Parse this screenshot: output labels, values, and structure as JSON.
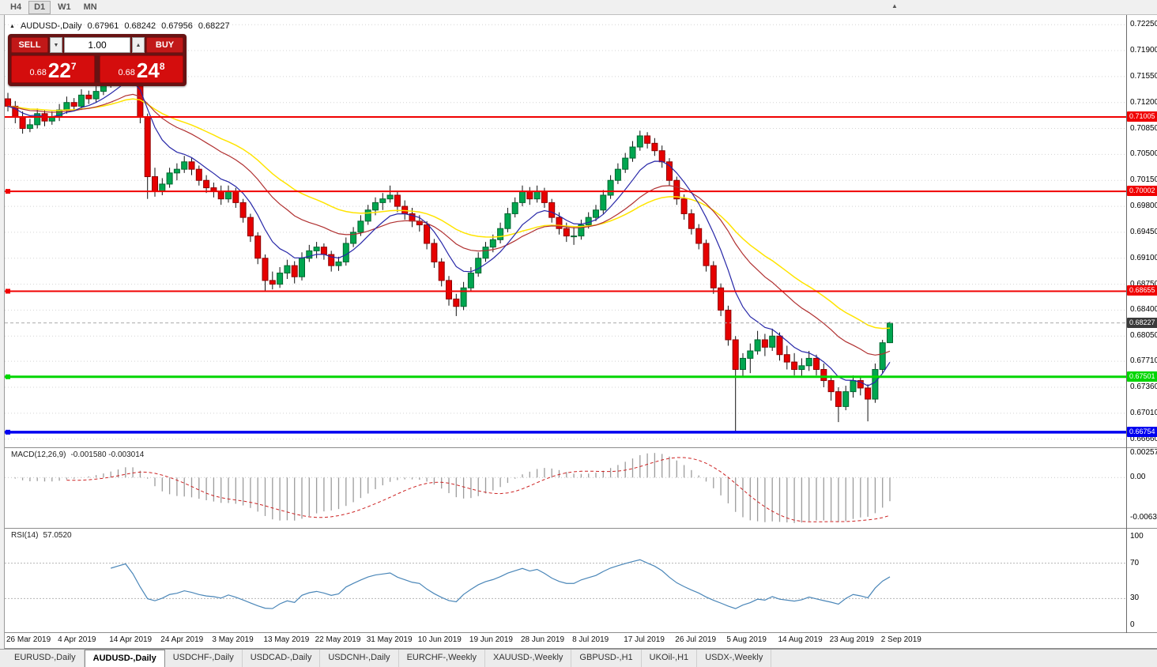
{
  "icons": {
    "up_arrow": "▲",
    "down_arrow": "▼"
  },
  "toolbar": {
    "timeframes": [
      "H4",
      "D1",
      "W1",
      "MN"
    ],
    "active": "D1"
  },
  "trade_panel": {
    "sell_label": "SELL",
    "buy_label": "BUY",
    "volume": "1.00",
    "sell_price": {
      "prefix": "0.68",
      "big": "22",
      "sup": "7"
    },
    "buy_price": {
      "prefix": "0.68",
      "big": "24",
      "sup": "8"
    }
  },
  "chart": {
    "symbol_label": "AUDUSD-,Daily",
    "ohlc": {
      "open": "0.67961",
      "high": "0.68242",
      "low": "0.67956",
      "close": "0.68227"
    },
    "price_axis": [
      "0.72250",
      "0.71900",
      "0.71550",
      "0.71200",
      "0.70850",
      "0.70500",
      "0.70150",
      "0.69800",
      "0.69450",
      "0.69100",
      "0.68750",
      "0.68400",
      "0.68050",
      "0.67710",
      "0.67360",
      "0.67010",
      "0.66660"
    ],
    "price_range": {
      "max": 0.7238,
      "min": 0.6655
    },
    "colors": {
      "bull": "#00a650",
      "bull_border": "#00662f",
      "bear": "#e60000",
      "bear_border": "#8f0000",
      "wick": "#111111"
    },
    "moving_averages": [
      {
        "period": 34,
        "color": "#ffe400",
        "width": 1.5
      },
      {
        "period": 21,
        "color": "#b03030",
        "width": 1.2
      },
      {
        "period": 8,
        "color": "#2727a8",
        "width": 1.2
      }
    ],
    "levels": [
      {
        "value": 0.71005,
        "label": "0.71005",
        "color": "#f00000",
        "width": 2,
        "anchor": false
      },
      {
        "value": 0.70002,
        "label": "0.70002",
        "color": "#f00000",
        "width": 2,
        "anchor": true
      },
      {
        "value": 0.68655,
        "label": "0.68655",
        "color": "#f00000",
        "width": 2,
        "anchor": true
      },
      {
        "value": 0.67501,
        "label": "0.67501",
        "color": "#00d600",
        "width": 3,
        "anchor": true
      },
      {
        "value": 0.66754,
        "label": "0.66754",
        "color": "#0000f0",
        "width": 3.5,
        "anchor": true
      }
    ],
    "current_price": {
      "value": 0.68227,
      "label": "0.68227",
      "badge_bg": "#3a3a3a",
      "line_color": "#aaaaaa"
    },
    "date_axis": [
      {
        "i": 0,
        "t": "26 Mar 2019"
      },
      {
        "i": 7,
        "t": "4 Apr 2019"
      },
      {
        "i": 14,
        "t": "14 Apr 2019"
      },
      {
        "i": 21,
        "t": "24 Apr 2019"
      },
      {
        "i": 28,
        "t": "3 May 2019"
      },
      {
        "i": 35,
        "t": "13 May 2019"
      },
      {
        "i": 42,
        "t": "22 May 2019"
      },
      {
        "i": 49,
        "t": "31 May 2019"
      },
      {
        "i": 56,
        "t": "10 Jun 2019"
      },
      {
        "i": 63,
        "t": "19 Jun 2019"
      },
      {
        "i": 70,
        "t": "28 Jun 2019"
      },
      {
        "i": 77,
        "t": "8 Jul 2019"
      },
      {
        "i": 84,
        "t": "17 Jul 2019"
      },
      {
        "i": 91,
        "t": "26 Jul 2019"
      },
      {
        "i": 98,
        "t": "5 Aug 2019"
      },
      {
        "i": 105,
        "t": "14 Aug 2019"
      },
      {
        "i": 112,
        "t": "23 Aug 2019"
      },
      {
        "i": 119,
        "t": "2 Sep 2019"
      }
    ],
    "candles": [
      [
        0.7125,
        0.7133,
        0.7108,
        0.7115
      ],
      [
        0.7115,
        0.7122,
        0.7092,
        0.71
      ],
      [
        0.71,
        0.7108,
        0.7078,
        0.7085
      ],
      [
        0.7085,
        0.7098,
        0.708,
        0.709
      ],
      [
        0.709,
        0.7112,
        0.7085,
        0.7105
      ],
      [
        0.7105,
        0.711,
        0.7088,
        0.7095
      ],
      [
        0.7095,
        0.7108,
        0.709,
        0.71
      ],
      [
        0.71,
        0.7118,
        0.7095,
        0.711
      ],
      [
        0.711,
        0.7128,
        0.7105,
        0.712
      ],
      [
        0.712,
        0.7126,
        0.7108,
        0.7115
      ],
      [
        0.7115,
        0.7138,
        0.711,
        0.713
      ],
      [
        0.713,
        0.7136,
        0.7118,
        0.7125
      ],
      [
        0.7125,
        0.7142,
        0.712,
        0.7135
      ],
      [
        0.7135,
        0.7152,
        0.713,
        0.7145
      ],
      [
        0.7145,
        0.7162,
        0.714,
        0.7155
      ],
      [
        0.7155,
        0.7172,
        0.715,
        0.7165
      ],
      [
        0.7165,
        0.7182,
        0.716,
        0.7175
      ],
      [
        0.7175,
        0.7178,
        0.7142,
        0.715
      ],
      [
        0.715,
        0.7155,
        0.7092,
        0.71
      ],
      [
        0.71,
        0.7105,
        0.699,
        0.702
      ],
      [
        0.702,
        0.7032,
        0.6993,
        0.7
      ],
      [
        0.7,
        0.7018,
        0.6995,
        0.701
      ],
      [
        0.701,
        0.7032,
        0.7005,
        0.7025
      ],
      [
        0.7025,
        0.7038,
        0.7015,
        0.703
      ],
      [
        0.703,
        0.7048,
        0.7025,
        0.704
      ],
      [
        0.704,
        0.7045,
        0.7022,
        0.703
      ],
      [
        0.703,
        0.7035,
        0.7008,
        0.7015
      ],
      [
        0.7015,
        0.7022,
        0.6998,
        0.7005
      ],
      [
        0.7005,
        0.7012,
        0.6992,
        0.7
      ],
      [
        0.7,
        0.7008,
        0.6982,
        0.699
      ],
      [
        0.699,
        0.7008,
        0.6985,
        0.7
      ],
      [
        0.7,
        0.7005,
        0.6978,
        0.6985
      ],
      [
        0.6985,
        0.699,
        0.6958,
        0.6965
      ],
      [
        0.6965,
        0.697,
        0.6932,
        0.694
      ],
      [
        0.694,
        0.6945,
        0.6902,
        0.691
      ],
      [
        0.691,
        0.6915,
        0.6866,
        0.688
      ],
      [
        0.688,
        0.6892,
        0.6868,
        0.6875
      ],
      [
        0.6875,
        0.6898,
        0.687,
        0.689
      ],
      [
        0.689,
        0.6908,
        0.6882,
        0.69
      ],
      [
        0.69,
        0.6906,
        0.6876,
        0.6885
      ],
      [
        0.6885,
        0.6918,
        0.688,
        0.691
      ],
      [
        0.691,
        0.6928,
        0.6905,
        0.692
      ],
      [
        0.692,
        0.6932,
        0.691,
        0.6925
      ],
      [
        0.6925,
        0.693,
        0.6908,
        0.6915
      ],
      [
        0.6915,
        0.692,
        0.6892,
        0.69
      ],
      [
        0.69,
        0.6912,
        0.6893,
        0.6905
      ],
      [
        0.6905,
        0.6938,
        0.69,
        0.693
      ],
      [
        0.693,
        0.6952,
        0.6925,
        0.6945
      ],
      [
        0.6945,
        0.6968,
        0.694,
        0.696
      ],
      [
        0.696,
        0.6982,
        0.6955,
        0.6975
      ],
      [
        0.6975,
        0.6992,
        0.6968,
        0.6985
      ],
      [
        0.6985,
        0.6998,
        0.6975,
        0.699
      ],
      [
        0.699,
        0.7008,
        0.6985,
        0.6995
      ],
      [
        0.6995,
        0.7,
        0.6972,
        0.698
      ],
      [
        0.698,
        0.6988,
        0.6962,
        0.697
      ],
      [
        0.697,
        0.6978,
        0.6952,
        0.696
      ],
      [
        0.696,
        0.6968,
        0.6946,
        0.6955
      ],
      [
        0.6955,
        0.696,
        0.6922,
        0.693
      ],
      [
        0.693,
        0.6936,
        0.6897,
        0.6905
      ],
      [
        0.6905,
        0.691,
        0.6872,
        0.688
      ],
      [
        0.688,
        0.6886,
        0.6846,
        0.6855
      ],
      [
        0.6855,
        0.6862,
        0.6832,
        0.6845
      ],
      [
        0.6845,
        0.6878,
        0.684,
        0.687
      ],
      [
        0.687,
        0.6898,
        0.6865,
        0.689
      ],
      [
        0.689,
        0.6918,
        0.6885,
        0.691
      ],
      [
        0.691,
        0.6932,
        0.6905,
        0.6925
      ],
      [
        0.6925,
        0.6942,
        0.6918,
        0.6935
      ],
      [
        0.6935,
        0.6958,
        0.693,
        0.695
      ],
      [
        0.695,
        0.6978,
        0.6945,
        0.697
      ],
      [
        0.697,
        0.6992,
        0.6965,
        0.6985
      ],
      [
        0.6985,
        0.7008,
        0.698,
        0.7
      ],
      [
        0.7,
        0.7006,
        0.6982,
        0.699
      ],
      [
        0.699,
        0.7008,
        0.6985,
        0.7
      ],
      [
        0.7,
        0.7005,
        0.6978,
        0.6985
      ],
      [
        0.6985,
        0.699,
        0.6958,
        0.6965
      ],
      [
        0.6965,
        0.6972,
        0.6942,
        0.695
      ],
      [
        0.695,
        0.6958,
        0.6932,
        0.694
      ],
      [
        0.694,
        0.6952,
        0.6928,
        0.694
      ],
      [
        0.694,
        0.6962,
        0.6935,
        0.6955
      ],
      [
        0.6955,
        0.6972,
        0.695,
        0.6965
      ],
      [
        0.6965,
        0.6982,
        0.696,
        0.6975
      ],
      [
        0.6975,
        0.7002,
        0.697,
        0.6995
      ],
      [
        0.6995,
        0.7022,
        0.699,
        0.7015
      ],
      [
        0.7015,
        0.7038,
        0.701,
        0.703
      ],
      [
        0.703,
        0.7052,
        0.7025,
        0.7045
      ],
      [
        0.7045,
        0.7068,
        0.704,
        0.706
      ],
      [
        0.706,
        0.7082,
        0.7055,
        0.7075
      ],
      [
        0.7075,
        0.708,
        0.7058,
        0.7065
      ],
      [
        0.7065,
        0.7072,
        0.7048,
        0.7055
      ],
      [
        0.7055,
        0.7062,
        0.7032,
        0.704
      ],
      [
        0.704,
        0.7045,
        0.7008,
        0.7015
      ],
      [
        0.7015,
        0.702,
        0.6982,
        0.699
      ],
      [
        0.699,
        0.6996,
        0.6962,
        0.697
      ],
      [
        0.697,
        0.6976,
        0.6942,
        0.695
      ],
      [
        0.695,
        0.6956,
        0.6922,
        0.693
      ],
      [
        0.693,
        0.6935,
        0.6892,
        0.69
      ],
      [
        0.69,
        0.6906,
        0.6862,
        0.687
      ],
      [
        0.687,
        0.6876,
        0.6832,
        0.684
      ],
      [
        0.684,
        0.6846,
        0.6792,
        0.68
      ],
      [
        0.68,
        0.6805,
        0.6677,
        0.676
      ],
      [
        0.676,
        0.6782,
        0.675,
        0.6775
      ],
      [
        0.6775,
        0.6795,
        0.6755,
        0.6785
      ],
      [
        0.6785,
        0.6812,
        0.678,
        0.68
      ],
      [
        0.68,
        0.6808,
        0.6778,
        0.679
      ],
      [
        0.679,
        0.6815,
        0.6785,
        0.6805
      ],
      [
        0.6805,
        0.681,
        0.6772,
        0.678
      ],
      [
        0.678,
        0.6792,
        0.676,
        0.677
      ],
      [
        0.677,
        0.6782,
        0.6752,
        0.676
      ],
      [
        0.676,
        0.6775,
        0.675,
        0.6765
      ],
      [
        0.6765,
        0.6785,
        0.6758,
        0.6775
      ],
      [
        0.6775,
        0.678,
        0.6752,
        0.676
      ],
      [
        0.676,
        0.6768,
        0.6736,
        0.6745
      ],
      [
        0.6745,
        0.6752,
        0.6718,
        0.673
      ],
      [
        0.673,
        0.6736,
        0.6689,
        0.671
      ],
      [
        0.671,
        0.6738,
        0.6705,
        0.673
      ],
      [
        0.673,
        0.6752,
        0.6722,
        0.6745
      ],
      [
        0.6745,
        0.675,
        0.6725,
        0.6735
      ],
      [
        0.6735,
        0.674,
        0.669,
        0.672
      ],
      [
        0.672,
        0.6768,
        0.6715,
        0.676
      ],
      [
        0.676,
        0.68,
        0.6755,
        0.6796
      ],
      [
        0.67961,
        0.68242,
        0.67956,
        0.68227
      ]
    ]
  },
  "macd": {
    "title": "MACD(12,26,9)",
    "values": "-0.001580 -0.003014",
    "fast": 12,
    "slow": 26,
    "signal": 9,
    "histogram_color": "#9c9c9c",
    "signal_color": "#cc2222",
    "axis_top_label": "0.002574",
    "axis_zero_label": "0.00",
    "axis_bottom_label": "-0.006326"
  },
  "rsi": {
    "title": "RSI(14)",
    "value": "57.0520",
    "period": 14,
    "color": "#4a86b8",
    "axis_labels": [
      "100",
      "70",
      "30",
      "0"
    ],
    "axis_values": [
      100,
      70,
      30,
      0
    ],
    "guide_levels": [
      70,
      30
    ]
  },
  "tabs": [
    "EURUSD-,Daily",
    "AUDUSD-,Daily",
    "USDCHF-,Daily",
    "USDCAD-,Daily",
    "USDCNH-,Daily",
    "EURCHF-,Weekly",
    "XAUUSD-,Weekly",
    "GBPUSD-,H1",
    "UKOil-,H1",
    "USDX-,Weekly"
  ],
  "active_tab": 1
}
